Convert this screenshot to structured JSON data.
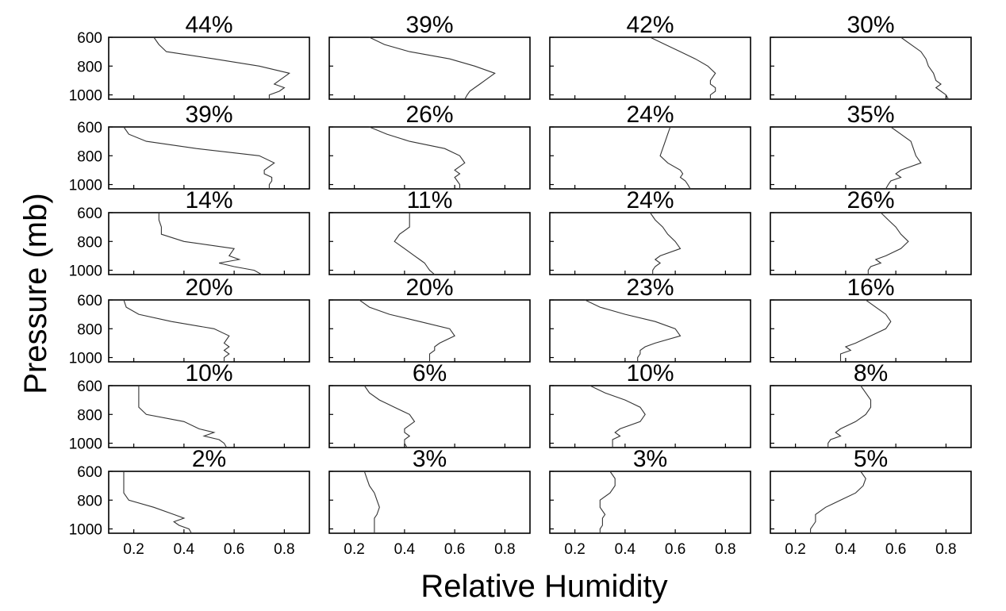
{
  "chart_data": {
    "type": "line",
    "xlabel": "Relative Humidity",
    "ylabel": "Pressure (mb)",
    "xlim": [
      0.1,
      0.9
    ],
    "ylim": [
      600,
      1030
    ],
    "y_reversed": true,
    "xticks": [
      "0.2",
      "0.4",
      "0.6",
      "0.8"
    ],
    "yticks": [
      "600",
      "800",
      "1000"
    ],
    "line_color": "#333333",
    "rows": 6,
    "cols": 4,
    "pressure_levels": [
      600,
      650,
      700,
      750,
      800,
      850,
      900,
      925,
      950,
      975,
      1000,
      1030
    ],
    "panels": [
      {
        "title": "44%",
        "rh": [
          0.28,
          0.3,
          0.33,
          0.52,
          0.7,
          0.82,
          0.78,
          0.76,
          0.8,
          0.78,
          0.74,
          0.74
        ]
      },
      {
        "title": "39%",
        "rh": [
          0.26,
          0.32,
          0.42,
          0.58,
          0.68,
          0.76,
          0.72,
          0.7,
          0.68,
          0.66,
          0.65,
          0.64
        ]
      },
      {
        "title": "42%",
        "rh": [
          0.5,
          0.56,
          0.62,
          0.68,
          0.73,
          0.76,
          0.74,
          0.74,
          0.76,
          0.76,
          0.74,
          0.74
        ]
      },
      {
        "title": "30%",
        "rh": [
          0.62,
          0.66,
          0.7,
          0.72,
          0.73,
          0.75,
          0.76,
          0.78,
          0.76,
          0.78,
          0.8,
          0.81
        ]
      },
      {
        "title": "39%",
        "rh": [
          0.16,
          0.18,
          0.25,
          0.45,
          0.7,
          0.76,
          0.72,
          0.72,
          0.75,
          0.75,
          0.74,
          0.74
        ]
      },
      {
        "title": "26%",
        "rh": [
          0.26,
          0.33,
          0.42,
          0.56,
          0.62,
          0.64,
          0.6,
          0.62,
          0.6,
          0.61,
          0.62,
          0.62
        ]
      },
      {
        "title": "24%",
        "rh": [
          0.58,
          0.57,
          0.56,
          0.55,
          0.54,
          0.57,
          0.62,
          0.63,
          0.62,
          0.64,
          0.65,
          0.66
        ]
      },
      {
        "title": "35%",
        "rh": [
          0.58,
          0.62,
          0.66,
          0.67,
          0.68,
          0.7,
          0.62,
          0.6,
          0.62,
          0.58,
          0.57,
          0.56
        ]
      },
      {
        "title": "14%",
        "rh": [
          0.3,
          0.3,
          0.31,
          0.31,
          0.4,
          0.6,
          0.58,
          0.62,
          0.54,
          0.6,
          0.68,
          0.71
        ]
      },
      {
        "title": "11%",
        "rh": [
          0.42,
          0.42,
          0.42,
          0.38,
          0.36,
          0.4,
          0.44,
          0.46,
          0.48,
          0.49,
          0.5,
          0.52
        ]
      },
      {
        "title": "24%",
        "rh": [
          0.5,
          0.52,
          0.55,
          0.57,
          0.6,
          0.62,
          0.54,
          0.52,
          0.54,
          0.52,
          0.51,
          0.51
        ]
      },
      {
        "title": "26%",
        "rh": [
          0.54,
          0.57,
          0.6,
          0.62,
          0.65,
          0.62,
          0.56,
          0.52,
          0.54,
          0.5,
          0.49,
          0.49
        ]
      },
      {
        "title": "20%",
        "rh": [
          0.16,
          0.17,
          0.22,
          0.35,
          0.52,
          0.58,
          0.56,
          0.58,
          0.56,
          0.58,
          0.56,
          0.56
        ]
      },
      {
        "title": "20%",
        "rh": [
          0.22,
          0.26,
          0.34,
          0.46,
          0.58,
          0.6,
          0.54,
          0.52,
          0.52,
          0.5,
          0.5,
          0.5
        ]
      },
      {
        "title": "23%",
        "rh": [
          0.24,
          0.3,
          0.4,
          0.52,
          0.6,
          0.62,
          0.52,
          0.48,
          0.46,
          0.46,
          0.45,
          0.45
        ]
      },
      {
        "title": "16%",
        "rh": [
          0.48,
          0.52,
          0.56,
          0.58,
          0.56,
          0.5,
          0.44,
          0.4,
          0.42,
          0.38,
          0.38,
          0.38
        ]
      },
      {
        "title": "10%",
        "rh": [
          0.22,
          0.22,
          0.22,
          0.22,
          0.25,
          0.4,
          0.46,
          0.52,
          0.48,
          0.54,
          0.56,
          0.57
        ]
      },
      {
        "title": "6%",
        "rh": [
          0.24,
          0.26,
          0.3,
          0.36,
          0.42,
          0.44,
          0.4,
          0.4,
          0.42,
          0.4,
          0.4,
          0.41
        ]
      },
      {
        "title": "10%",
        "rh": [
          0.26,
          0.32,
          0.4,
          0.46,
          0.48,
          0.46,
          0.38,
          0.36,
          0.38,
          0.35,
          0.35,
          0.35
        ]
      },
      {
        "title": "8%",
        "rh": [
          0.46,
          0.48,
          0.5,
          0.5,
          0.48,
          0.44,
          0.38,
          0.36,
          0.38,
          0.34,
          0.33,
          0.33
        ]
      },
      {
        "title": "2%",
        "rh": [
          0.16,
          0.16,
          0.16,
          0.16,
          0.18,
          0.28,
          0.36,
          0.4,
          0.36,
          0.38,
          0.42,
          0.43
        ]
      },
      {
        "title": "3%",
        "rh": [
          0.24,
          0.25,
          0.26,
          0.28,
          0.29,
          0.3,
          0.29,
          0.28,
          0.28,
          0.28,
          0.28,
          0.28
        ]
      },
      {
        "title": "3%",
        "rh": [
          0.34,
          0.36,
          0.36,
          0.34,
          0.3,
          0.3,
          0.32,
          0.31,
          0.31,
          0.31,
          0.3,
          0.3
        ]
      },
      {
        "title": "5%",
        "rh": [
          0.46,
          0.48,
          0.47,
          0.44,
          0.38,
          0.32,
          0.28,
          0.28,
          0.28,
          0.27,
          0.26,
          0.26
        ]
      }
    ]
  }
}
